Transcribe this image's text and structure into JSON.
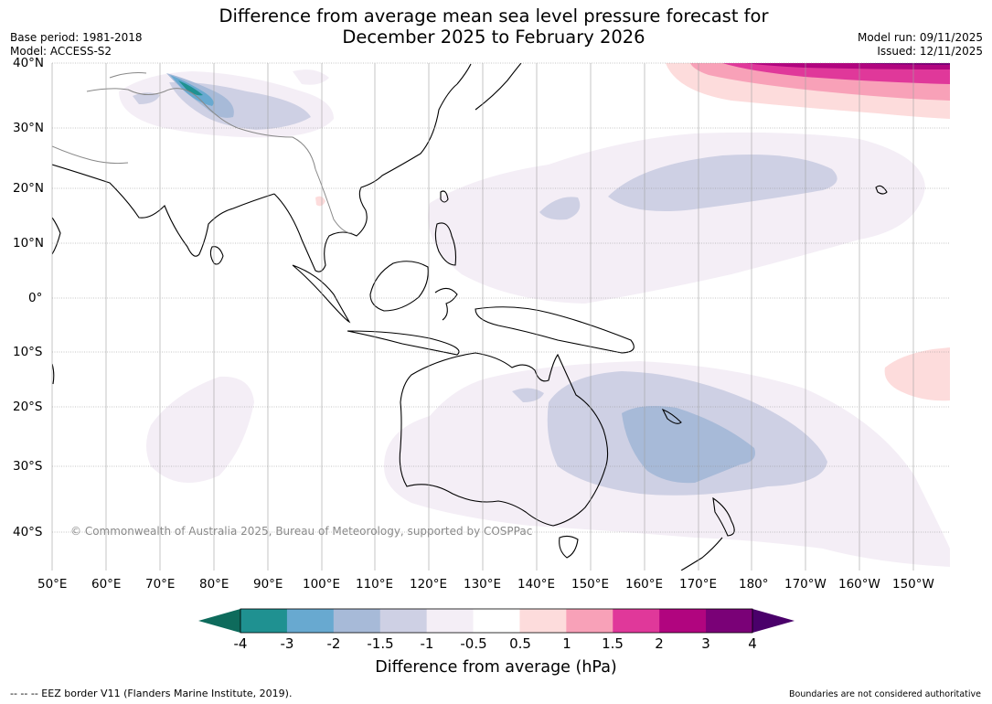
{
  "title": {
    "line1": "Difference from average mean sea level pressure forecast for",
    "line2": "December 2025 to February 2026"
  },
  "meta_left": {
    "base_period": "Base period: 1981-2018",
    "model": "Model: ACCESS-S2"
  },
  "meta_right": {
    "model_run": "Model run: 09/11/2025",
    "issued": "Issued: 12/11/2025"
  },
  "map": {
    "lat_labels": [
      "40°N",
      "30°N",
      "20°N",
      "10°N",
      "0°",
      "10°S",
      "20°S",
      "30°S",
      "40°S"
    ],
    "lon_labels": [
      "50°E",
      "60°E",
      "70°E",
      "80°E",
      "90°E",
      "100°E",
      "110°E",
      "120°E",
      "130°E",
      "140°E",
      "150°E",
      "160°E",
      "170°E",
      "180°",
      "170°W",
      "160°W",
      "150°W"
    ],
    "copyright": "© Commonwealth of Australia 2025, Bureau of Meteorology, supported by COSPPac"
  },
  "colorbar": {
    "ticks": [
      "-4",
      "-3",
      "-2",
      "-1.5",
      "-1",
      "-0.5",
      "0.5",
      "1",
      "1.5",
      "2",
      "3",
      "4"
    ],
    "colors": {
      "under": "#0e6b5c",
      "bins": [
        "#1f9191",
        "#68a9d0",
        "#a7bad8",
        "#ced0e4",
        "#f4eef6",
        "#ffffff",
        "#fddcdc",
        "#f8a1b8",
        "#e0389a",
        "#b1057f",
        "#7a0177"
      ],
      "over": "#4a006a"
    },
    "label": "Difference from average (hPa)"
  },
  "footer": {
    "eez": "--  --  -- EEZ border V11 (Flanders Marine Institute, 2019).",
    "disclaimer": "Boundaries are not considered authoritative"
  }
}
